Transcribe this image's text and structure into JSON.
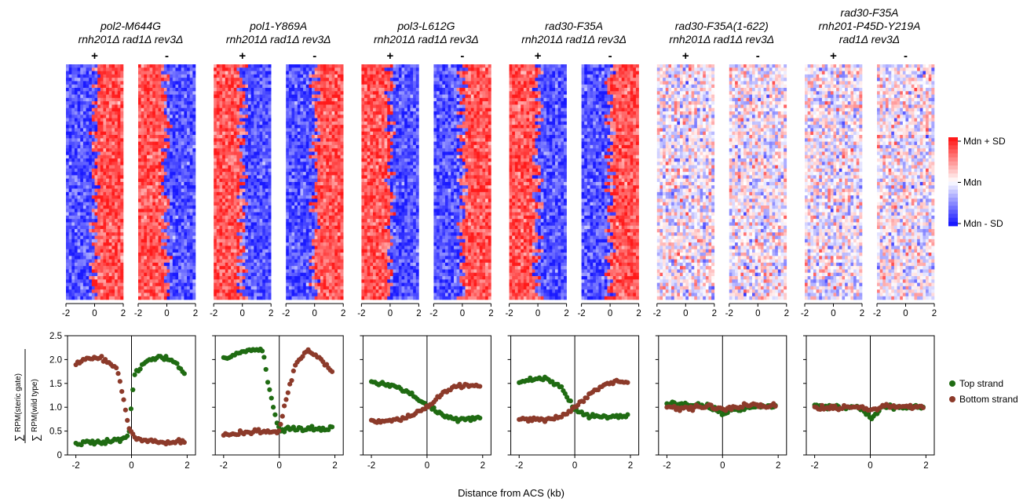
{
  "xlabel": "Distance from ACS (kb)",
  "heatmap_scale": {
    "labels": [
      "Mdn + SD",
      "Mdn",
      "Mdn - SD"
    ],
    "colors": {
      "high": "#ff1a1a",
      "mid": "#ffffff",
      "low": "#1a1aff"
    }
  },
  "strand_signs": [
    "+",
    "-"
  ],
  "ylabel": {
    "numerator": "RPM(steric gate)",
    "denominator": "RPM(wild type)"
  },
  "legend": [
    {
      "label": "Top strand",
      "color": "#1f6b12"
    },
    {
      "label": "Bottom strand",
      "color": "#8c3a2a"
    }
  ],
  "chart_data": [
    {
      "type": "scatter",
      "title_lines": [
        "pol2-M644G",
        "rnh201Δ rad1Δ rev3Δ"
      ],
      "heatmap_pattern": "top_low_left_high_right",
      "xlim": [
        -2.3,
        2.3
      ],
      "ylim": [
        0,
        2.5
      ],
      "xticks": [
        -2,
        0,
        2
      ],
      "yticks": [
        0,
        0.5,
        1.0,
        1.5,
        2.0,
        2.5
      ],
      "series": [
        {
          "name": "Top strand",
          "x": [
            -2.0,
            -1.5,
            -1.0,
            -0.5,
            -0.1,
            0.1,
            0.5,
            1.0,
            1.5,
            1.9
          ],
          "y": [
            0.25,
            0.26,
            0.27,
            0.3,
            0.4,
            1.7,
            1.95,
            2.05,
            2.0,
            1.7
          ]
        },
        {
          "name": "Bottom strand",
          "x": [
            -2.0,
            -1.5,
            -1.0,
            -0.5,
            -0.1,
            0.1,
            0.5,
            1.0,
            1.5,
            1.9
          ],
          "y": [
            1.9,
            2.05,
            2.0,
            1.8,
            0.6,
            0.35,
            0.3,
            0.27,
            0.27,
            0.27
          ]
        }
      ]
    },
    {
      "type": "scatter",
      "title_lines": [
        "pol1-Y869A",
        "rnh201Δ rad1Δ rev3Δ"
      ],
      "heatmap_pattern": "top_high_left_low_right",
      "xlim": [
        -2.3,
        2.3
      ],
      "ylim": [
        0,
        2.5
      ],
      "xticks": [
        -2,
        0,
        2
      ],
      "yticks": [
        0,
        0.5,
        1.0,
        1.5,
        2.0,
        2.5
      ],
      "series": [
        {
          "name": "Top strand",
          "x": [
            -2.0,
            -1.5,
            -1.0,
            -0.6,
            -0.3,
            0.0,
            0.5,
            1.0,
            1.5,
            1.9
          ],
          "y": [
            2.0,
            2.15,
            2.2,
            2.2,
            1.2,
            0.5,
            0.55,
            0.55,
            0.55,
            0.58
          ]
        },
        {
          "name": "Bottom strand",
          "x": [
            -2.0,
            -1.5,
            -1.0,
            -0.5,
            0.0,
            0.3,
            0.6,
            1.0,
            1.5,
            1.9
          ],
          "y": [
            0.42,
            0.45,
            0.5,
            0.48,
            0.5,
            1.3,
            1.9,
            2.2,
            2.0,
            1.75
          ]
        }
      ]
    },
    {
      "type": "scatter",
      "title_lines": [
        "pol3-L612G",
        "rnh201Δ rad1Δ rev3Δ"
      ],
      "heatmap_pattern": "top_high_left_low_right",
      "xlim": [
        -2.3,
        2.3
      ],
      "ylim": [
        0,
        2.5
      ],
      "xticks": [
        -2,
        0,
        2
      ],
      "yticks": [
        0,
        0.5,
        1.0,
        1.5,
        2.0,
        2.5
      ],
      "series": [
        {
          "name": "Top strand",
          "x": [
            -2.0,
            -1.5,
            -1.0,
            -0.5,
            0.0,
            0.5,
            1.0,
            1.5,
            1.9
          ],
          "y": [
            1.5,
            1.5,
            1.4,
            1.25,
            1.05,
            0.85,
            0.75,
            0.75,
            0.78
          ]
        },
        {
          "name": "Bottom strand",
          "x": [
            -2.0,
            -1.5,
            -1.0,
            -0.5,
            0.0,
            0.5,
            1.0,
            1.5,
            1.9
          ],
          "y": [
            0.72,
            0.72,
            0.75,
            0.85,
            1.0,
            1.25,
            1.45,
            1.45,
            1.45
          ]
        }
      ]
    },
    {
      "type": "scatter",
      "title_lines": [
        "rad30-F35A",
        "rnh201Δ rad1Δ rev3Δ"
      ],
      "heatmap_pattern": "top_high_left_low_right",
      "xlim": [
        -2.3,
        2.3
      ],
      "ylim": [
        0,
        2.5
      ],
      "xticks": [
        -2,
        0,
        2
      ],
      "yticks": [
        0,
        0.5,
        1.0,
        1.5,
        2.0,
        2.5
      ],
      "series": [
        {
          "name": "Top strand",
          "x": [
            -2.0,
            -1.5,
            -1.0,
            -0.5,
            0.0,
            0.5,
            1.0,
            1.5,
            1.9
          ],
          "y": [
            1.55,
            1.6,
            1.6,
            1.4,
            0.95,
            0.82,
            0.8,
            0.8,
            0.82
          ]
        },
        {
          "name": "Bottom strand",
          "x": [
            -2.0,
            -1.5,
            -1.0,
            -0.5,
            0.0,
            0.5,
            1.0,
            1.5,
            1.9
          ],
          "y": [
            0.75,
            0.75,
            0.75,
            0.8,
            1.0,
            1.25,
            1.45,
            1.55,
            1.55
          ]
        }
      ]
    },
    {
      "type": "scatter",
      "title_lines": [
        "rad30-F35A(1-622)",
        "rnh201Δ rad1Δ rev3Δ"
      ],
      "heatmap_pattern": "noisy",
      "xlim": [
        -2.3,
        2.3
      ],
      "ylim": [
        0,
        2.5
      ],
      "xticks": [
        -2,
        0,
        2
      ],
      "yticks": [
        0,
        0.5,
        1.0,
        1.5,
        2.0,
        2.5
      ],
      "series": [
        {
          "name": "Top strand",
          "x": [
            -2.0,
            -1.5,
            -1.0,
            -0.5,
            0.0,
            0.5,
            1.0,
            1.5,
            1.9
          ],
          "y": [
            1.08,
            1.05,
            1.05,
            1.02,
            0.88,
            0.95,
            1.0,
            1.0,
            1.02
          ]
        },
        {
          "name": "Bottom strand",
          "x": [
            -2.0,
            -1.5,
            -1.0,
            -0.5,
            0.0,
            0.5,
            1.0,
            1.5,
            1.9
          ],
          "y": [
            1.0,
            0.98,
            1.0,
            1.0,
            0.95,
            1.02,
            1.05,
            1.02,
            1.02
          ]
        }
      ]
    },
    {
      "type": "scatter",
      "title_lines": [
        "rad30-F35A",
        "rnh201-P45D-Y219A",
        "rad1Δ rev3Δ"
      ],
      "heatmap_pattern": "noisy",
      "xlim": [
        -2.3,
        2.3
      ],
      "ylim": [
        0,
        2.5
      ],
      "xticks": [
        -2,
        0,
        2
      ],
      "yticks": [
        0,
        0.5,
        1.0,
        1.5,
        2.0,
        2.5
      ],
      "series": [
        {
          "name": "Top strand",
          "x": [
            -2.0,
            -1.5,
            -1.0,
            -0.5,
            -0.1,
            0.0,
            0.3,
            0.5,
            1.0,
            1.5,
            1.9
          ],
          "y": [
            1.05,
            1.02,
            1.0,
            1.0,
            0.85,
            0.75,
            0.95,
            1.0,
            1.0,
            1.0,
            1.02
          ]
        },
        {
          "name": "Bottom strand",
          "x": [
            -2.0,
            -1.5,
            -1.0,
            -0.5,
            0.0,
            0.5,
            1.0,
            1.5,
            1.9
          ],
          "y": [
            1.0,
            0.98,
            1.0,
            1.0,
            0.95,
            1.02,
            1.02,
            1.02,
            1.02
          ]
        }
      ]
    }
  ]
}
